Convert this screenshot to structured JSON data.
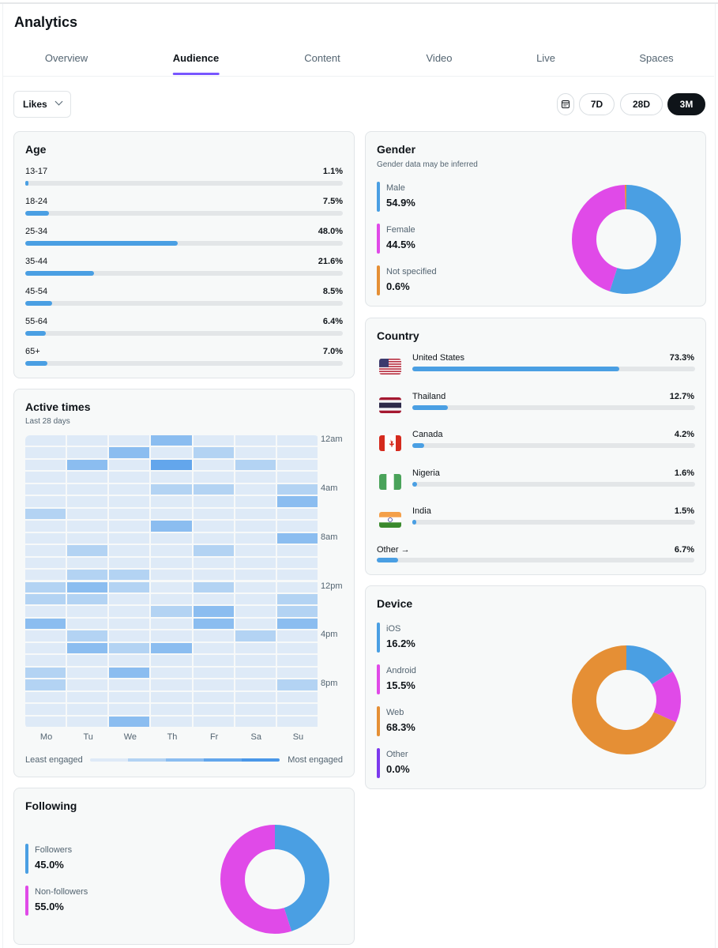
{
  "header": {
    "title": "Analytics"
  },
  "tabs": [
    {
      "label": "Overview"
    },
    {
      "label": "Audience",
      "active": true
    },
    {
      "label": "Content"
    },
    {
      "label": "Video"
    },
    {
      "label": "Live"
    },
    {
      "label": "Spaces"
    }
  ],
  "toolbar": {
    "metric": "Likes",
    "calendar_icon": "calendar-icon",
    "ranges": [
      {
        "label": "7D"
      },
      {
        "label": "28D"
      },
      {
        "label": "3M",
        "selected": true
      }
    ]
  },
  "colors": {
    "blue": "#4a9fe3",
    "magenta": "#e04ae8",
    "orange": "#e58f35",
    "purple": "#7c3aed",
    "accent": "#7856ff"
  },
  "age": {
    "title": "Age",
    "rows": [
      {
        "label": "13-17",
        "value": "1.1%",
        "pct": 1.1
      },
      {
        "label": "18-24",
        "value": "7.5%",
        "pct": 7.5
      },
      {
        "label": "25-34",
        "value": "48.0%",
        "pct": 48.0
      },
      {
        "label": "35-44",
        "value": "21.6%",
        "pct": 21.6
      },
      {
        "label": "45-54",
        "value": "8.5%",
        "pct": 8.5
      },
      {
        "label": "55-64",
        "value": "6.4%",
        "pct": 6.4
      },
      {
        "label": "65+",
        "value": "7.0%",
        "pct": 7.0
      }
    ]
  },
  "active_times": {
    "title": "Active times",
    "subtitle": "Last 28 days",
    "days": [
      "Mo",
      "Tu",
      "We",
      "Th",
      "Fr",
      "Sa",
      "Su"
    ],
    "hour_labels": [
      {
        "row": 0,
        "label": "12am"
      },
      {
        "row": 4,
        "label": "4am"
      },
      {
        "row": 8,
        "label": "8am"
      },
      {
        "row": 12,
        "label": "12pm"
      },
      {
        "row": 16,
        "label": "4pm"
      },
      {
        "row": 20,
        "label": "8pm"
      }
    ],
    "levels": [
      [
        0,
        0,
        0,
        2,
        0,
        0,
        0
      ],
      [
        0,
        0,
        2,
        0,
        1,
        0,
        0
      ],
      [
        0,
        2,
        0,
        3,
        0,
        1,
        0
      ],
      [
        0,
        0,
        0,
        0,
        0,
        0,
        0
      ],
      [
        0,
        0,
        0,
        1,
        1,
        0,
        1
      ],
      [
        0,
        0,
        0,
        0,
        0,
        0,
        2
      ],
      [
        1,
        0,
        0,
        0,
        0,
        0,
        0
      ],
      [
        0,
        0,
        0,
        2,
        0,
        0,
        0
      ],
      [
        0,
        0,
        0,
        0,
        0,
        0,
        2
      ],
      [
        0,
        1,
        0,
        0,
        1,
        0,
        0
      ],
      [
        0,
        0,
        0,
        0,
        0,
        0,
        0
      ],
      [
        0,
        1,
        1,
        0,
        0,
        0,
        0
      ],
      [
        1,
        2,
        1,
        0,
        1,
        0,
        0
      ],
      [
        1,
        1,
        0,
        0,
        0,
        0,
        1
      ],
      [
        0,
        0,
        0,
        1,
        2,
        0,
        1
      ],
      [
        2,
        0,
        0,
        0,
        2,
        0,
        2
      ],
      [
        0,
        1,
        0,
        0,
        0,
        1,
        0
      ],
      [
        0,
        2,
        1,
        2,
        0,
        0,
        0
      ],
      [
        0,
        0,
        0,
        0,
        0,
        0,
        0
      ],
      [
        1,
        0,
        2,
        0,
        0,
        0,
        0
      ],
      [
        1,
        0,
        0,
        0,
        0,
        0,
        1
      ],
      [
        0,
        0,
        0,
        0,
        0,
        0,
        0
      ],
      [
        0,
        0,
        0,
        0,
        0,
        0,
        0
      ],
      [
        0,
        0,
        2,
        0,
        0,
        0,
        0
      ]
    ],
    "scale_colors": [
      "#deeaf7",
      "#b3d3f3",
      "#8bbdf0",
      "#63a6ec",
      "#4a97e8"
    ],
    "least": "Least engaged",
    "most": "Most engaged"
  },
  "following": {
    "title": "Following",
    "items": [
      {
        "label": "Followers",
        "value": "45.0%",
        "pct": 45.0,
        "color": "#4a9fe3"
      },
      {
        "label": "Non-followers",
        "value": "55.0%",
        "pct": 55.0,
        "color": "#e04ae8"
      }
    ]
  },
  "gender": {
    "title": "Gender",
    "subtitle": "Gender data may be inferred",
    "items": [
      {
        "label": "Male",
        "value": "54.9%",
        "pct": 54.9,
        "color": "#4a9fe3"
      },
      {
        "label": "Female",
        "value": "44.5%",
        "pct": 44.5,
        "color": "#e04ae8"
      },
      {
        "label": "Not specified",
        "value": "0.6%",
        "pct": 0.6,
        "color": "#e58f35"
      }
    ]
  },
  "country": {
    "title": "Country",
    "rows": [
      {
        "label": "United States",
        "value": "73.3%",
        "pct": 73.3,
        "flag": "us"
      },
      {
        "label": "Thailand",
        "value": "12.7%",
        "pct": 12.7,
        "flag": "th"
      },
      {
        "label": "Canada",
        "value": "4.2%",
        "pct": 4.2,
        "flag": "ca"
      },
      {
        "label": "Nigeria",
        "value": "1.6%",
        "pct": 1.6,
        "flag": "ng"
      },
      {
        "label": "India",
        "value": "1.5%",
        "pct": 1.5,
        "flag": "in"
      }
    ],
    "other": {
      "label": "Other →",
      "value": "6.7%",
      "pct": 6.7
    }
  },
  "device": {
    "title": "Device",
    "items": [
      {
        "label": "iOS",
        "value": "16.2%",
        "pct": 16.2,
        "color": "#4a9fe3"
      },
      {
        "label": "Android",
        "value": "15.5%",
        "pct": 15.5,
        "color": "#e04ae8"
      },
      {
        "label": "Web",
        "value": "68.3%",
        "pct": 68.3,
        "color": "#e58f35"
      },
      {
        "label": "Other",
        "value": "0.0%",
        "pct": 0.0,
        "color": "#7c3aed"
      }
    ]
  }
}
